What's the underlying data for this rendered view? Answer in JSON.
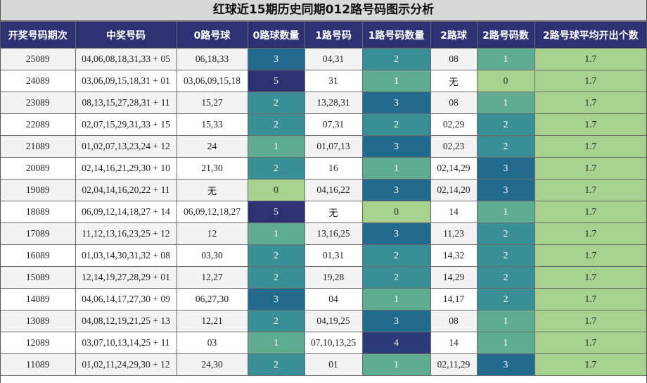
{
  "title": "红球近15期历史同期012路号码图示分析",
  "headers": [
    "开奖号码期次",
    "中奖号码",
    "0路号球",
    "0路球数量",
    "1路号码",
    "1路号码数量",
    "2路球",
    "2路号码数",
    "2路号球平均开出个数"
  ],
  "count_colors": {
    "0": "#a6d18f",
    "1": "#60ac92",
    "2": "#3a8f97",
    "3": "#236b8e",
    "4": "#2c3b78",
    "5": "#2e3273"
  },
  "rows": [
    {
      "issue": "25089",
      "numbers": "04,06,08,18,31,33 + 05",
      "r0": "06,18,33",
      "c0": "3",
      "r1": "04,31",
      "c1": "2",
      "r2": "08",
      "c2": "1",
      "avg": "1.7"
    },
    {
      "issue": "24089",
      "numbers": "03,06,09,15,18,31 + 01",
      "r0": "03,06,09,15,18",
      "c0": "5",
      "r1": "31",
      "c1": "1",
      "r2": "无",
      "c2": "0",
      "avg": "1.7"
    },
    {
      "issue": "23089",
      "numbers": "08,13,15,27,28,31 + 11",
      "r0": "15,27",
      "c0": "2",
      "r1": "13,28,31",
      "c1": "3",
      "r2": "08",
      "c2": "1",
      "avg": "1.7"
    },
    {
      "issue": "22089",
      "numbers": "02,07,15,29,31,33 + 15",
      "r0": "15,33",
      "c0": "2",
      "r1": "07,31",
      "c1": "2",
      "r2": "02,29",
      "c2": "2",
      "avg": "1.7"
    },
    {
      "issue": "21089",
      "numbers": "01,02,07,13,23,24 + 12",
      "r0": "24",
      "c0": "1",
      "r1": "01,07,13",
      "c1": "3",
      "r2": "02,23",
      "c2": "2",
      "avg": "1.7"
    },
    {
      "issue": "20089",
      "numbers": "02,14,16,21,29,30 + 10",
      "r0": "21,30",
      "c0": "2",
      "r1": "16",
      "c1": "1",
      "r2": "02,14,29",
      "c2": "3",
      "avg": "1.7"
    },
    {
      "issue": "19089",
      "numbers": "02,04,14,16,20,22 + 11",
      "r0": "无",
      "c0": "0",
      "r1": "04,16,22",
      "c1": "3",
      "r2": "02,14,20",
      "c2": "3",
      "avg": "1.7"
    },
    {
      "issue": "18089",
      "numbers": "06,09,12,14,18,27 + 14",
      "r0": "06,09,12,18,27",
      "c0": "5",
      "r1": "无",
      "c1": "0",
      "r2": "14",
      "c2": "1",
      "avg": "1.7"
    },
    {
      "issue": "17089",
      "numbers": "11,12,13,16,23,25 + 12",
      "r0": "12",
      "c0": "1",
      "r1": "13,16,25",
      "c1": "3",
      "r2": "11,23",
      "c2": "2",
      "avg": "1.7"
    },
    {
      "issue": "16089",
      "numbers": "01,03,14,30,31,32 + 08",
      "r0": "03,30",
      "c0": "2",
      "r1": "01,31",
      "c1": "2",
      "r2": "14,32",
      "c2": "2",
      "avg": "1.7"
    },
    {
      "issue": "15089",
      "numbers": "12,14,19,27,28,29 + 01",
      "r0": "12,27",
      "c0": "2",
      "r1": "19,28",
      "c1": "2",
      "r2": "14,29",
      "c2": "2",
      "avg": "1.7"
    },
    {
      "issue": "14089",
      "numbers": "04,06,14,17,27,30 + 09",
      "r0": "06,27,30",
      "c0": "3",
      "r1": "04",
      "c1": "1",
      "r2": "14,17",
      "c2": "2",
      "avg": "1.7"
    },
    {
      "issue": "13089",
      "numbers": "04,08,12,19,21,25 + 13",
      "r0": "12,21",
      "c0": "2",
      "r1": "04,19,25",
      "c1": "3",
      "r2": "08",
      "c2": "1",
      "avg": "1.7"
    },
    {
      "issue": "12089",
      "numbers": "03,07,10,13,14,25 + 11",
      "r0": "03",
      "c0": "1",
      "r1": "07,10,13,25",
      "c1": "4",
      "r2": "14",
      "c2": "1",
      "avg": "1.7"
    },
    {
      "issue": "11089",
      "numbers": "01,02,11,24,29,30 + 12",
      "r0": "24,30",
      "c0": "2",
      "r1": "01",
      "c1": "1",
      "r2": "02,11,29",
      "c2": "3",
      "avg": "1.7"
    }
  ]
}
